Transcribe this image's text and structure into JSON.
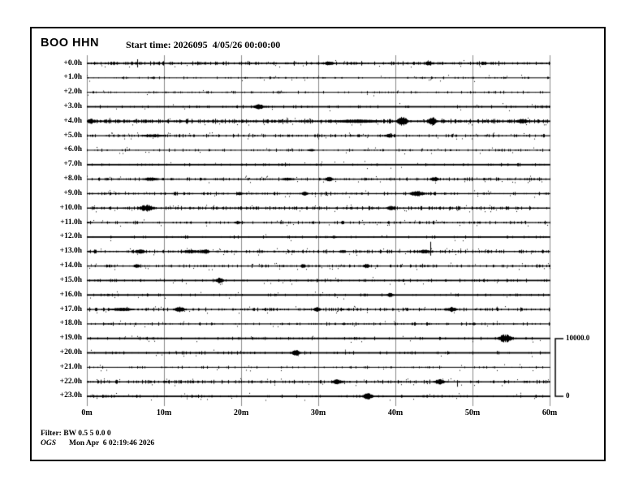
{
  "window": {
    "background": "#ffffff",
    "border_color": "#000000"
  },
  "header": {
    "station": "BOO HHN",
    "start_time": "Start time: 2026095  4/05/26 00:00:00"
  },
  "scale_bar": {
    "top_label": "10000.0",
    "bottom_label": "0"
  },
  "footer": {
    "filter": "Filter: BW 0.5 5 0.0 0",
    "agency": "OGS",
    "timestamp": "Mon Apr  6 02:19:46 2026"
  },
  "chart_data": {
    "type": "line",
    "subtype": "helicorder-seismogram",
    "title": "BOO HHN",
    "start_time": "2026095 4/05/26 00:00:00",
    "grid": "vertical gridlines every 10 minutes",
    "legend_position": "none",
    "colors": {
      "trace": "#000000",
      "grid": "#8a8a8a",
      "background": "#ffffff"
    },
    "x_axis": {
      "tick_labels": [
        "0m",
        "10m",
        "20m",
        "30m",
        "40m",
        "50m",
        "60m"
      ],
      "tick_minutes": [
        0,
        10,
        20,
        30,
        40,
        50,
        60
      ],
      "range_minutes": [
        0,
        60
      ]
    },
    "y_axis": {
      "description": "hours since start time, one trace row per hour",
      "tick_labels": [
        "+0.0h",
        "+1.0h",
        "+2.0h",
        "+3.0h",
        "+4.0h",
        "+5.0h",
        "+6.0h",
        "+7.0h",
        "+8.0h",
        "+9.0h",
        "+10.0h",
        "+11.0h",
        "+12.0h",
        "+13.0h",
        "+14.0h",
        "+15.0h",
        "+16.0h",
        "+17.0h",
        "+18.0h",
        "+19.0h",
        "+20.0h",
        "+21.0h",
        "+22.0h",
        "+23.0h"
      ]
    },
    "amplitude_scale": {
      "max": 10000.0,
      "min": 0
    },
    "events_format": "events: [minute, amplitude_px, width_minutes]; spikes: [minute, up_px, down_px]",
    "rows": [
      {
        "label": "+0.0h",
        "base_width": 1.6,
        "noise": 0.55,
        "events": [
          [
            31.4,
            2.2,
            1.2
          ],
          [
            44.3,
            1.8,
            0.8
          ]
        ],
        "spikes": [
          [
            6.5,
            5,
            5
          ]
        ]
      },
      {
        "label": "+1.0h",
        "base_width": 1.0,
        "noise": 0.25,
        "events": [],
        "spikes": []
      },
      {
        "label": "+2.0h",
        "base_width": 1.0,
        "noise": 0.3,
        "events": [],
        "spikes": []
      },
      {
        "label": "+3.0h",
        "base_width": 1.8,
        "noise": 0.25,
        "events": [
          [
            22.2,
            3.2,
            1.3
          ]
        ],
        "spikes": []
      },
      {
        "label": "+4.0h",
        "base_width": 1.8,
        "noise": 0.7,
        "events": [
          [
            0.4,
            2.8,
            0.8
          ],
          [
            35.0,
            1.2,
            6.0
          ],
          [
            40.8,
            4.8,
            1.6
          ],
          [
            44.7,
            4.2,
            1.3
          ],
          [
            56.4,
            2.4,
            1.6
          ]
        ],
        "spikes": []
      },
      {
        "label": "+5.0h",
        "base_width": 1.2,
        "noise": 0.5,
        "events": [
          [
            8.5,
            1.2,
            3.0
          ],
          [
            39.2,
            2.4,
            0.9
          ]
        ],
        "spikes": []
      },
      {
        "label": "+6.0h",
        "base_width": 1.0,
        "noise": 0.35,
        "events": [
          [
            29.0,
            1.4,
            0.8
          ]
        ],
        "spikes": []
      },
      {
        "label": "+7.0h",
        "base_width": 1.8,
        "noise": 0.2,
        "events": [],
        "spikes": []
      },
      {
        "label": "+8.0h",
        "base_width": 1.3,
        "noise": 0.5,
        "events": [
          [
            8.2,
            1.8,
            1.6
          ],
          [
            26.0,
            1.2,
            1.5
          ],
          [
            31.4,
            2.2,
            1.1
          ],
          [
            45.0,
            2.2,
            1.2
          ]
        ],
        "spikes": []
      },
      {
        "label": "+9.0h",
        "base_width": 1.3,
        "noise": 0.45,
        "events": [
          [
            19.8,
            1.6,
            0.8
          ],
          [
            28.2,
            2.0,
            0.9
          ],
          [
            42.8,
            2.6,
            2.2
          ]
        ],
        "spikes": []
      },
      {
        "label": "+10.0h",
        "base_width": 1.4,
        "noise": 0.6,
        "events": [
          [
            7.7,
            3.8,
            2.0
          ],
          [
            39.4,
            2.6,
            1.1
          ]
        ],
        "spikes": []
      },
      {
        "label": "+11.0h",
        "base_width": 1.2,
        "noise": 0.4,
        "events": [
          [
            19.5,
            1.5,
            0.8
          ]
        ],
        "spikes": []
      },
      {
        "label": "+12.0h",
        "base_width": 1.8,
        "noise": 0.15,
        "events": [
          [
            32.0,
            0.8,
            0.5
          ]
        ],
        "spikes": []
      },
      {
        "label": "+13.0h",
        "base_width": 1.3,
        "noise": 0.55,
        "events": [
          [
            6.8,
            2.8,
            1.4
          ],
          [
            13.5,
            1.6,
            2.5
          ],
          [
            15.3,
            2.8,
            1.2
          ],
          [
            33.0,
            1.4,
            0.8
          ],
          [
            43.8,
            1.8,
            1.5
          ]
        ],
        "spikes": [
          [
            44.5,
            12,
            5
          ]
        ]
      },
      {
        "label": "+14.0h",
        "base_width": 1.2,
        "noise": 0.45,
        "events": [
          [
            6.4,
            1.8,
            0.9
          ],
          [
            28.0,
            1.8,
            0.8
          ],
          [
            36.2,
            2.2,
            1.0
          ]
        ],
        "spikes": []
      },
      {
        "label": "+15.0h",
        "base_width": 1.7,
        "noise": 0.3,
        "events": [
          [
            17.2,
            2.8,
            1.0
          ]
        ],
        "spikes": []
      },
      {
        "label": "+16.0h",
        "base_width": 1.8,
        "noise": 0.2,
        "events": [
          [
            39.3,
            2.0,
            0.7
          ]
        ],
        "spikes": []
      },
      {
        "label": "+17.0h",
        "base_width": 1.3,
        "noise": 0.55,
        "events": [
          [
            4.5,
            1.5,
            3.0
          ],
          [
            12.0,
            2.8,
            1.5
          ],
          [
            29.8,
            2.6,
            1.0
          ],
          [
            47.3,
            2.6,
            1.4
          ]
        ],
        "spikes": []
      },
      {
        "label": "+18.0h",
        "base_width": 1.2,
        "noise": 0.4,
        "events": [
          [
            33.3,
            1.2,
            0.4
          ],
          [
            50.1,
            1.2,
            0.4
          ]
        ],
        "spikes": []
      },
      {
        "label": "+19.0h",
        "base_width": 1.8,
        "noise": 0.25,
        "events": [
          [
            54.2,
            4.2,
            2.0
          ]
        ],
        "spikes": []
      },
      {
        "label": "+20.0h",
        "base_width": 1.8,
        "noise": 0.25,
        "events": [
          [
            27.1,
            3.0,
            1.1
          ]
        ],
        "spikes": []
      },
      {
        "label": "+21.0h",
        "base_width": 1.0,
        "noise": 0.3,
        "events": [],
        "spikes": []
      },
      {
        "label": "+22.0h",
        "base_width": 1.4,
        "noise": 0.55,
        "events": [
          [
            32.4,
            2.4,
            1.4
          ],
          [
            45.7,
            2.8,
            1.4
          ]
        ],
        "spikes": [
          [
            48.0,
            2,
            6
          ]
        ]
      },
      {
        "label": "+23.0h",
        "base_width": 1.8,
        "noise": 0.25,
        "events": [
          [
            36.4,
            3.2,
            1.4
          ]
        ],
        "spikes": []
      }
    ]
  }
}
